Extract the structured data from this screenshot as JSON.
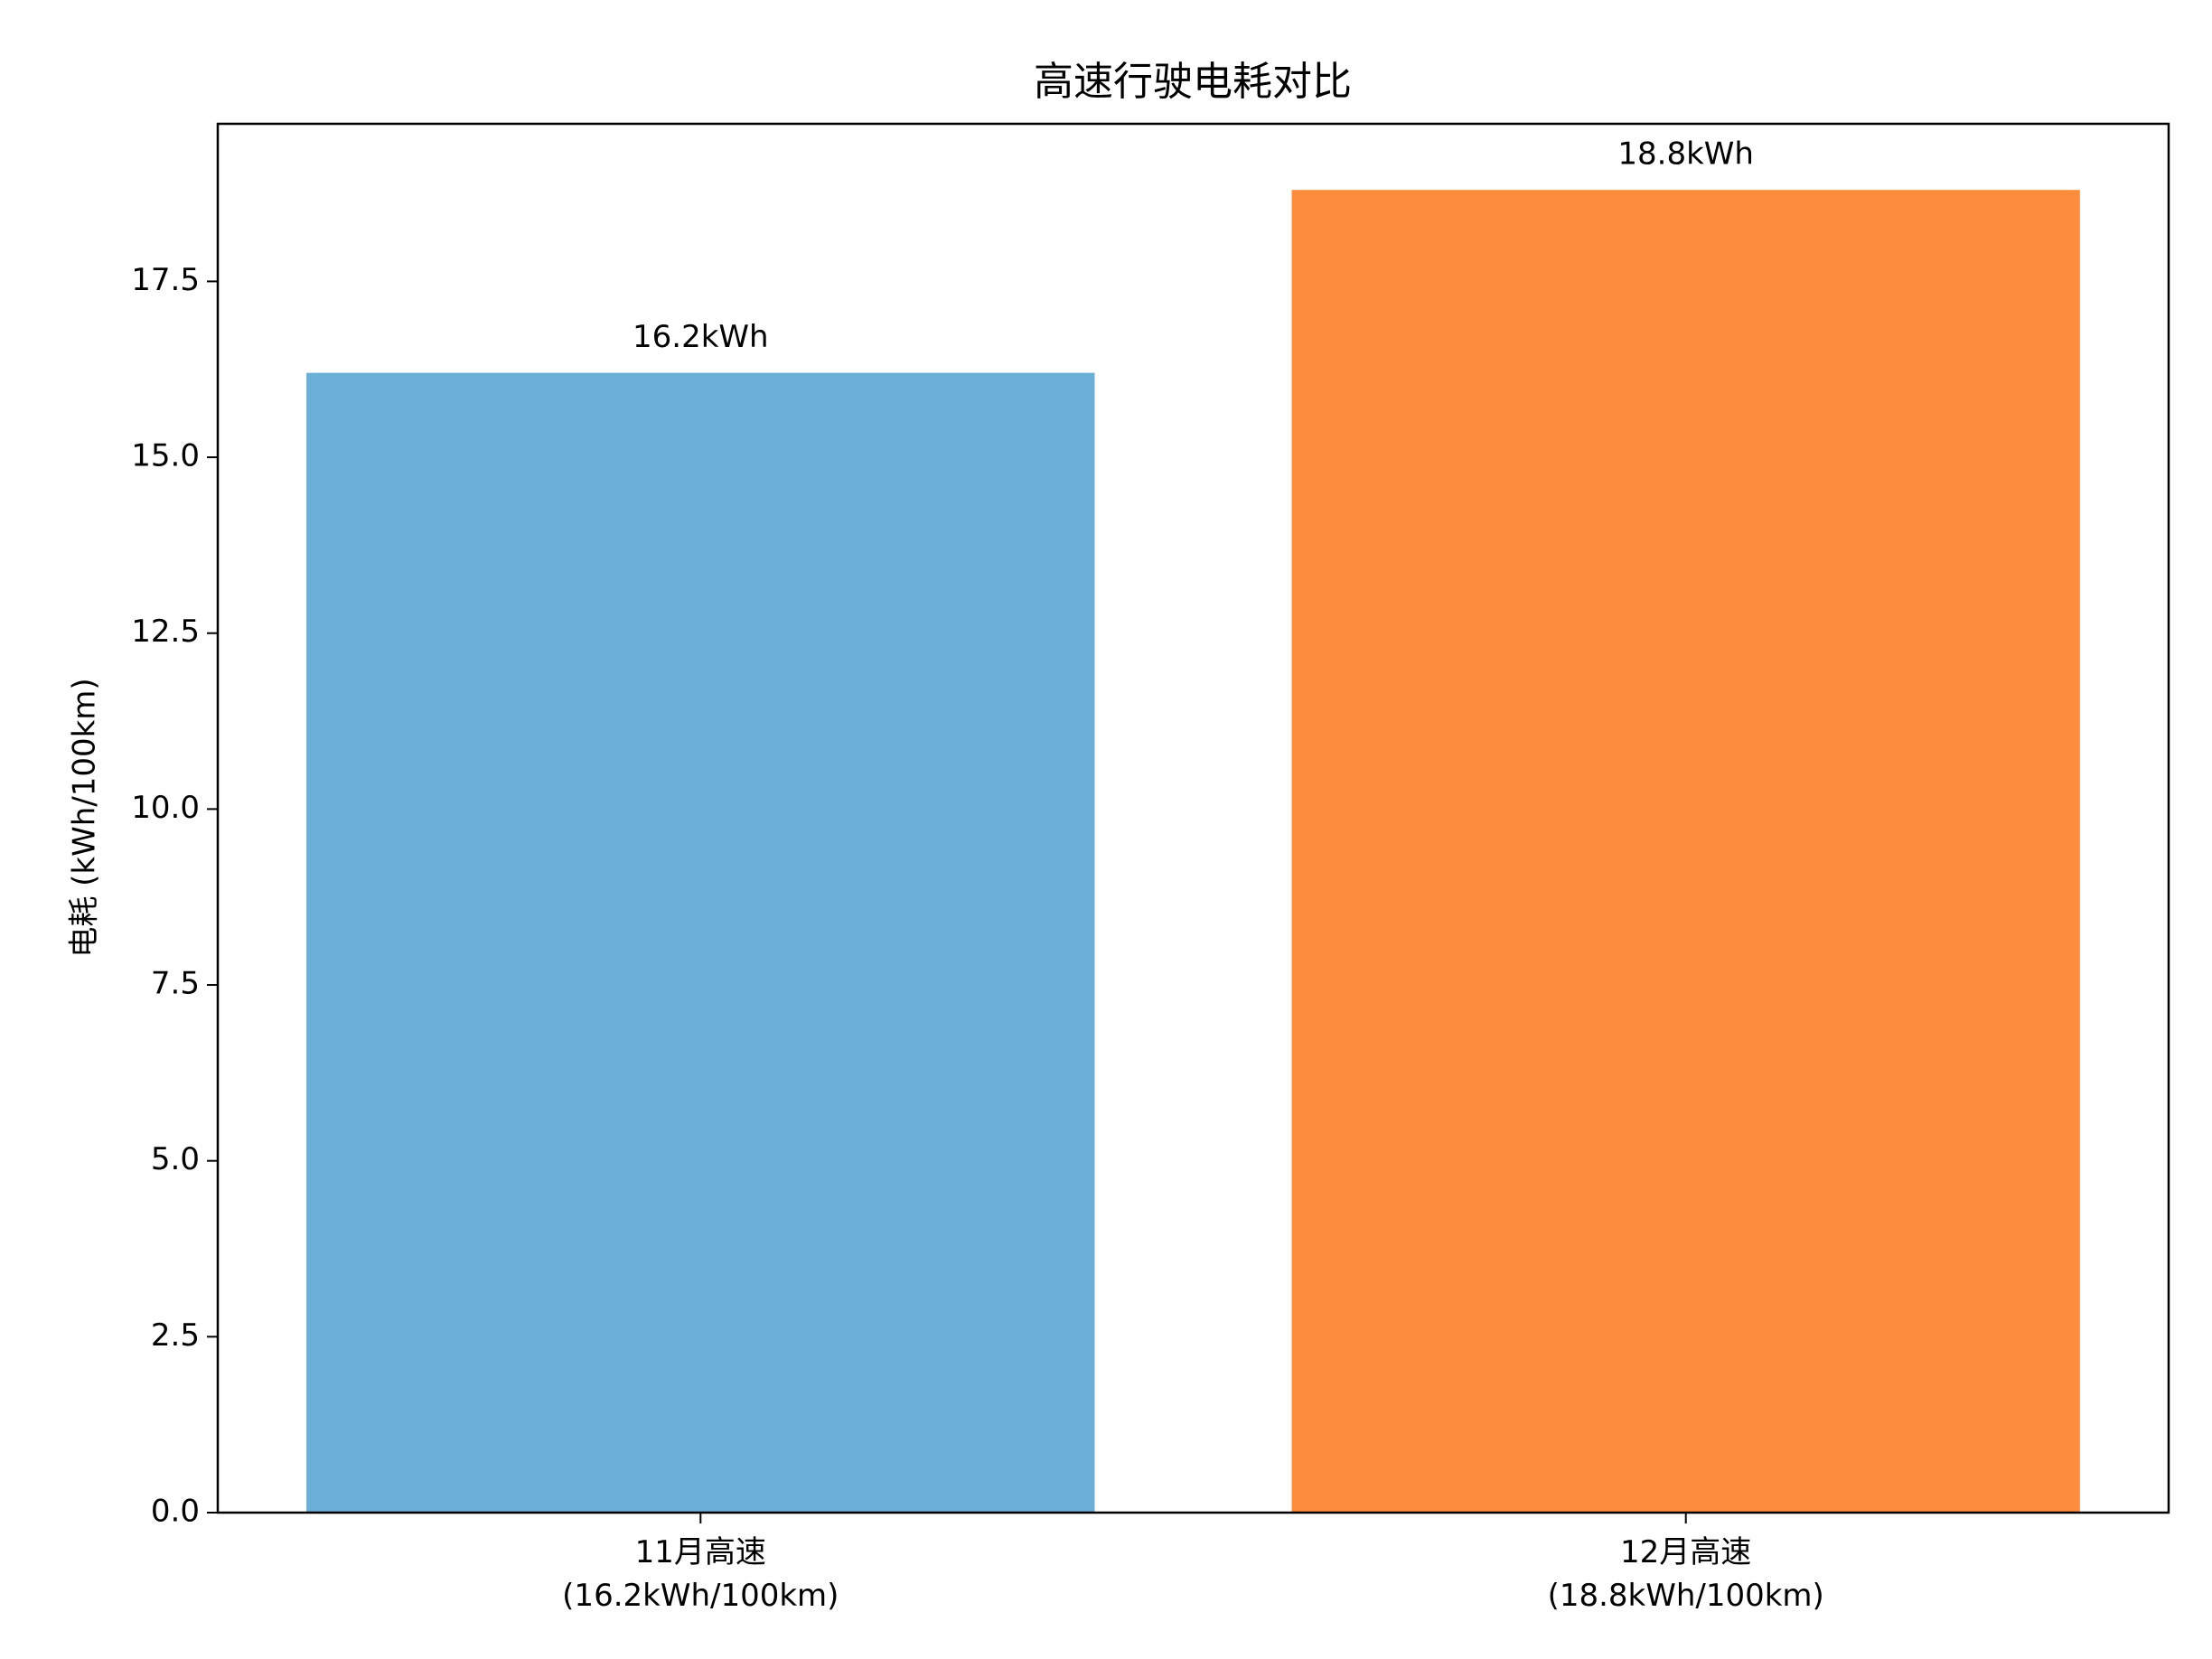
{
  "chart_data": {
    "type": "bar",
    "title": "高速行驶电耗对比",
    "y_label": "电耗 (kWh/100km)",
    "categories": [
      "11月高速\n(16.2kWh/100km)",
      "12月高速\n(18.8kWh/100km)"
    ],
    "values": [
      16.2,
      18.8
    ],
    "value_labels": [
      "16.2kWh",
      "18.8kWh"
    ],
    "colors": [
      "#6baed6",
      "#fd8d3c"
    ],
    "ylim": [
      0,
      19.74
    ],
    "yticks": [
      {
        "value": 0,
        "label": "0.0"
      },
      2.5,
      {
        "value": 5,
        "label": "5.0"
      },
      7.5,
      {
        "value": 10,
        "label": "10.0"
      },
      12.5,
      {
        "value": 15,
        "label": "15.0"
      },
      17.5
    ],
    "grid": false
  }
}
